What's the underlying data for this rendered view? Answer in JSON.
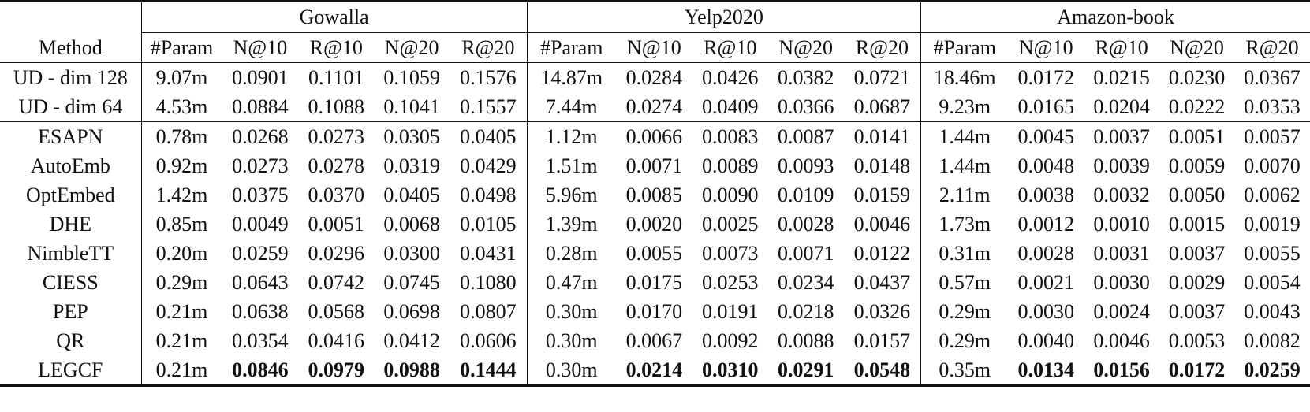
{
  "groups": [
    "Gowalla",
    "Yelp2020",
    "Amazon-book"
  ],
  "columns": {
    "method": "Method",
    "metrics": [
      "#Param",
      "N@10",
      "R@10",
      "N@20",
      "R@20"
    ]
  },
  "rows": [
    {
      "method": "UD - dim 128",
      "values": [
        "9.07m",
        "0.0901",
        "0.1101",
        "0.1059",
        "0.1576",
        "14.87m",
        "0.0284",
        "0.0426",
        "0.0382",
        "0.0721",
        "18.46m",
        "0.0172",
        "0.0215",
        "0.0230",
        "0.0367"
      ]
    },
    {
      "method": "UD - dim 64",
      "values": [
        "4.53m",
        "0.0884",
        "0.1088",
        "0.1041",
        "0.1557",
        "7.44m",
        "0.0274",
        "0.0409",
        "0.0366",
        "0.0687",
        "9.23m",
        "0.0165",
        "0.0204",
        "0.0222",
        "0.0353"
      ]
    },
    {
      "method": "ESAPN",
      "values": [
        "0.78m",
        "0.0268",
        "0.0273",
        "0.0305",
        "0.0405",
        "1.12m",
        "0.0066",
        "0.0083",
        "0.0087",
        "0.0141",
        "1.44m",
        "0.0045",
        "0.0037",
        "0.0051",
        "0.0057"
      ]
    },
    {
      "method": "AutoEmb",
      "values": [
        "0.92m",
        "0.0273",
        "0.0278",
        "0.0319",
        "0.0429",
        "1.51m",
        "0.0071",
        "0.0089",
        "0.0093",
        "0.0148",
        "1.44m",
        "0.0048",
        "0.0039",
        "0.0059",
        "0.0070"
      ]
    },
    {
      "method": "OptEmbed",
      "values": [
        "1.42m",
        "0.0375",
        "0.0370",
        "0.0405",
        "0.0498",
        "5.96m",
        "0.0085",
        "0.0090",
        "0.0109",
        "0.0159",
        "2.11m",
        "0.0038",
        "0.0032",
        "0.0050",
        "0.0062"
      ]
    },
    {
      "method": "DHE",
      "values": [
        "0.85m",
        "0.0049",
        "0.0051",
        "0.0068",
        "0.0105",
        "1.39m",
        "0.0020",
        "0.0025",
        "0.0028",
        "0.0046",
        "1.73m",
        "0.0012",
        "0.0010",
        "0.0015",
        "0.0019"
      ]
    },
    {
      "method": "NimbleTT",
      "values": [
        "0.20m",
        "0.0259",
        "0.0296",
        "0.0300",
        "0.0431",
        "0.28m",
        "0.0055",
        "0.0073",
        "0.0071",
        "0.0122",
        "0.31m",
        "0.0028",
        "0.0031",
        "0.0037",
        "0.0055"
      ]
    },
    {
      "method": "CIESS",
      "values": [
        "0.29m",
        "0.0643",
        "0.0742",
        "0.0745",
        "0.1080",
        "0.47m",
        "0.0175",
        "0.0253",
        "0.0234",
        "0.0437",
        "0.57m",
        "0.0021",
        "0.0030",
        "0.0029",
        "0.0054"
      ]
    },
    {
      "method": "PEP",
      "values": [
        "0.21m",
        "0.0638",
        "0.0568",
        "0.0698",
        "0.0807",
        "0.30m",
        "0.0170",
        "0.0191",
        "0.0218",
        "0.0326",
        "0.29m",
        "0.0030",
        "0.0024",
        "0.0037",
        "0.0043"
      ]
    },
    {
      "method": "QR",
      "values": [
        "0.21m",
        "0.0354",
        "0.0416",
        "0.0412",
        "0.0606",
        "0.30m",
        "0.0067",
        "0.0092",
        "0.0088",
        "0.0157",
        "0.29m",
        "0.0040",
        "0.0046",
        "0.0053",
        "0.0082"
      ]
    },
    {
      "method": "LEGCF",
      "values": [
        "0.21m",
        "0.0846",
        "0.0979",
        "0.0988",
        "0.1444",
        "0.30m",
        "0.0214",
        "0.0310",
        "0.0291",
        "0.0548",
        "0.35m",
        "0.0134",
        "0.0156",
        "0.0172",
        "0.0259"
      ],
      "bold_metrics": true
    }
  ]
}
